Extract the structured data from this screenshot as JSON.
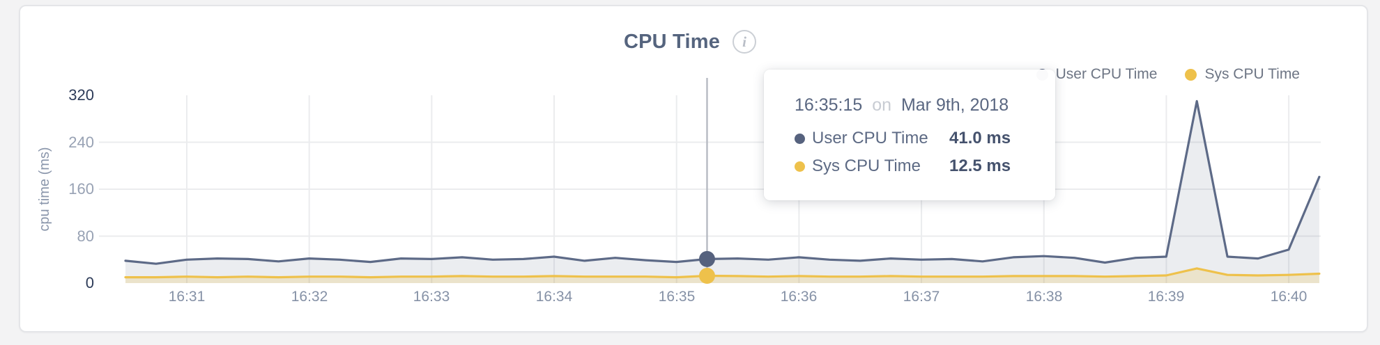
{
  "header": {
    "title": "CPU Time",
    "info_icon": "i"
  },
  "legend": {
    "items": [
      {
        "label": "User CPU Time",
        "color": "#56627e"
      },
      {
        "label": "Sys CPU Time",
        "color": "#eec14b"
      }
    ]
  },
  "tooltip": {
    "time": "16:35:15",
    "on_word": "on",
    "date": "Mar 9th, 2018",
    "rows": [
      {
        "label": "User CPU Time",
        "value": "41.0 ms",
        "color": "#56627e"
      },
      {
        "label": "Sys CPU Time",
        "value": "12.5 ms",
        "color": "#eec14b"
      }
    ],
    "highlight_index": 19
  },
  "chart_data": {
    "type": "area",
    "title": "CPU Time",
    "xlabel": "",
    "ylabel": "cpu time (ms)",
    "ylim": [
      0,
      320
    ],
    "yticks": [
      0,
      80,
      160,
      240,
      320
    ],
    "xticks": [
      "16:31",
      "16:32",
      "16:33",
      "16:34",
      "16:35",
      "16:36",
      "16:37",
      "16:38",
      "16:39",
      "16:40"
    ],
    "grid": "horizontal and vertical, light gray",
    "legend_position": "top-right",
    "sample_interval_seconds": 15,
    "x_times": [
      "16:30:30",
      "16:30:45",
      "16:31:00",
      "16:31:15",
      "16:31:30",
      "16:31:45",
      "16:32:00",
      "16:32:15",
      "16:32:30",
      "16:32:45",
      "16:33:00",
      "16:33:15",
      "16:33:30",
      "16:33:45",
      "16:34:00",
      "16:34:15",
      "16:34:30",
      "16:34:45",
      "16:35:00",
      "16:35:15",
      "16:35:30",
      "16:35:45",
      "16:36:00",
      "16:36:15",
      "16:36:30",
      "16:36:45",
      "16:37:00",
      "16:37:15",
      "16:37:30",
      "16:37:45",
      "16:38:00",
      "16:38:15",
      "16:38:30",
      "16:38:45",
      "16:39:00",
      "16:39:15",
      "16:39:30",
      "16:39:45",
      "16:40:00",
      "16:40:15"
    ],
    "series": [
      {
        "name": "User CPU Time",
        "color": "#5d6a87",
        "fill": "rgba(93,106,135,0.12)",
        "values": [
          38,
          33,
          40,
          42,
          41,
          37,
          42,
          40,
          36,
          42,
          41,
          44,
          40,
          41,
          45,
          38,
          43,
          39,
          36,
          41,
          42,
          40,
          44,
          40,
          38,
          42,
          40,
          41,
          37,
          44,
          46,
          43,
          35,
          43,
          45,
          310,
          45,
          42,
          57,
          181
        ]
      },
      {
        "name": "Sys CPU Time",
        "color": "#eec14b",
        "fill": "rgba(238,193,75,0.22)",
        "values": [
          10,
          10,
          11,
          10,
          11,
          10,
          11,
          11,
          10,
          11,
          11,
          12,
          11,
          11,
          12,
          11,
          11,
          11,
          10,
          12.5,
          12,
          11,
          12,
          11,
          11,
          12,
          11,
          11,
          11,
          12,
          12,
          12,
          11,
          12,
          13,
          25,
          14,
          13,
          14,
          16
        ]
      }
    ],
    "colors": {
      "grid": "#ebecee",
      "crosshair": "#b6bac2",
      "ytick_minor": "#98a2b4",
      "ytick_edge": "#2d3b58",
      "xtick": "#8591a6"
    }
  }
}
